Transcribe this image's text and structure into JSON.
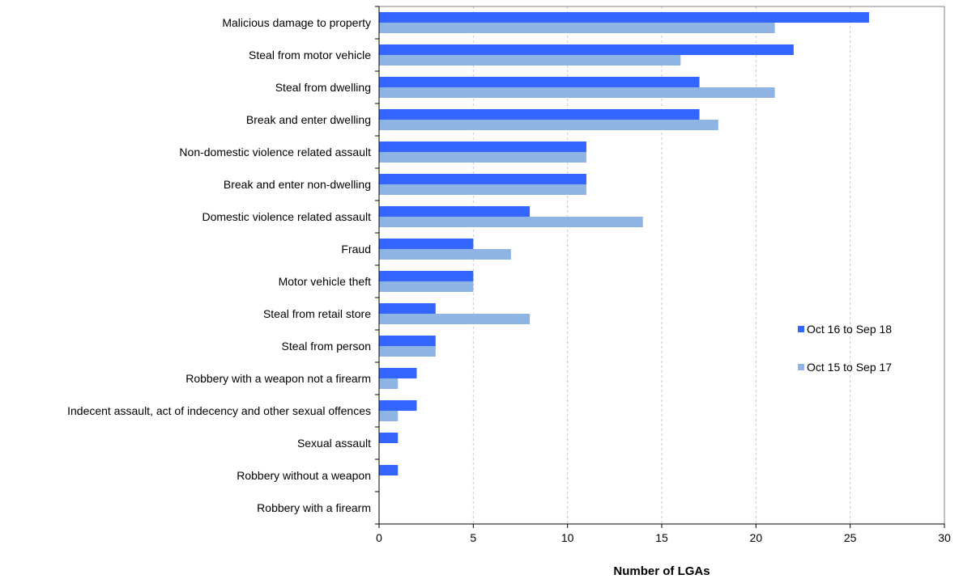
{
  "chart_data": {
    "type": "bar",
    "orientation": "horizontal",
    "title": "",
    "xlabel": "Number of LGAs",
    "ylabel": "",
    "xlim": [
      0,
      30
    ],
    "xticks": [
      0,
      5,
      10,
      15,
      20,
      25,
      30
    ],
    "grid": "vertical dashed",
    "legend_position": "right",
    "categories": [
      "Malicious damage to property",
      "Steal from motor vehicle",
      "Steal from dwelling",
      "Break and enter dwelling",
      "Non-domestic violence related assault",
      "Break and enter non-dwelling",
      "Domestic violence related assault",
      "Fraud",
      "Motor vehicle theft",
      "Steal from retail store",
      "Steal from person",
      "Robbery with a weapon not a firearm",
      "Indecent assault, act of indecency and other sexual offences",
      "Sexual assault",
      "Robbery without a weapon",
      "Robbery with a firearm"
    ],
    "series": [
      {
        "name": "Oct 16 to Sep 18",
        "color": "#3366ff",
        "values": [
          26,
          22,
          17,
          17,
          11,
          11,
          8,
          5,
          5,
          3,
          3,
          2,
          2,
          1,
          1,
          0
        ]
      },
      {
        "name": "Oct 15 to Sep 17",
        "color": "#8eb4e3",
        "values": [
          21,
          16,
          21,
          18,
          11,
          11,
          14,
          7,
          5,
          8,
          3,
          1,
          1,
          0,
          0,
          0
        ]
      }
    ]
  }
}
